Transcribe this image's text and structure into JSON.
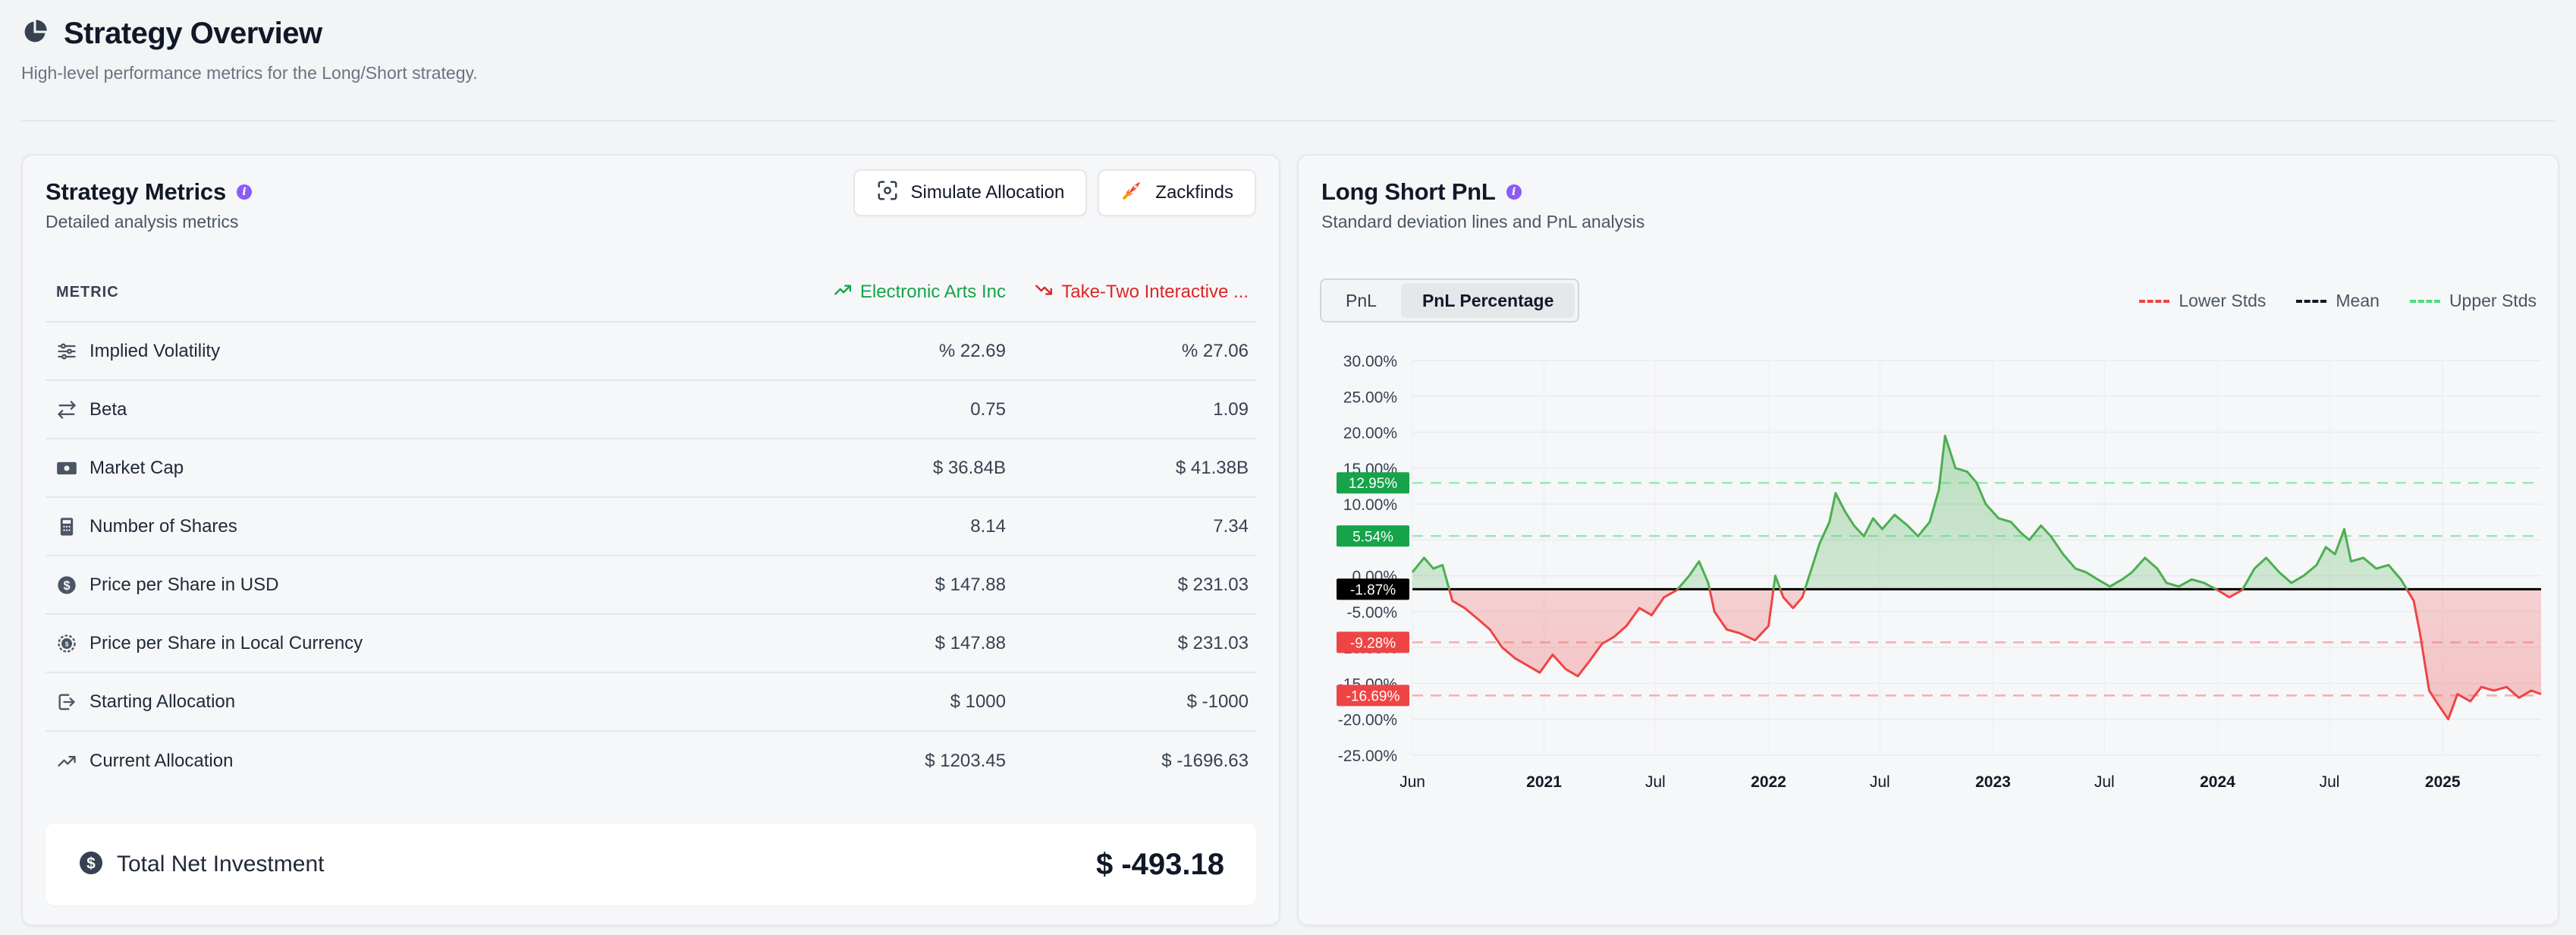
{
  "header": {
    "title": "Strategy Overview",
    "subtitle": "High-level performance metrics for the Long/Short strategy."
  },
  "metrics_card": {
    "title": "Strategy Metrics",
    "subtitle": "Detailed analysis metrics",
    "buttons": {
      "simulate": "Simulate Allocation",
      "zackfinds": "Zackfinds"
    },
    "table": {
      "metric_header": "METRIC",
      "col_a": "Electronic Arts Inc",
      "col_b": "Take-Two Interactive ...",
      "rows": [
        {
          "label": "Implied Volatility",
          "a": "% 22.69",
          "b": "% 27.06",
          "icon": "sliders-icon"
        },
        {
          "label": "Beta",
          "a": "0.75",
          "b": "1.09",
          "icon": "arrows-exchange-icon"
        },
        {
          "label": "Market Cap",
          "a": "$ 36.84B",
          "b": "$ 41.38B",
          "icon": "banknote-icon"
        },
        {
          "label": "Number of Shares",
          "a": "8.14",
          "b": "7.34",
          "icon": "calculator-icon"
        },
        {
          "label": "Price per Share in USD",
          "a": "$ 147.88",
          "b": "$ 231.03",
          "icon": "dollar-circle-icon"
        },
        {
          "label": "Price per Share in Local Currency",
          "a": "$ 147.88",
          "b": "$ 231.03",
          "icon": "globe-currency-icon"
        },
        {
          "label": "Starting Allocation",
          "a": "$ 1000",
          "b": "$ -1000",
          "icon": "logout-icon"
        },
        {
          "label": "Current Allocation",
          "a": "$ 1203.45",
          "b": "$ -1696.63",
          "icon": "trending-up-icon"
        }
      ]
    },
    "total": {
      "label": "Total Net Investment",
      "value": "$ -493.18"
    }
  },
  "pnl_card": {
    "title": "Long Short PnL",
    "subtitle": "Standard deviation lines and PnL analysis",
    "toggle": {
      "options": [
        "PnL",
        "PnL Percentage"
      ],
      "selected": "PnL Percentage"
    },
    "legend": {
      "lower": "Lower Stds",
      "mean": "Mean",
      "upper": "Upper Stds"
    }
  },
  "colors": {
    "positive": "#16a34a",
    "negative": "#dc2626",
    "line_up": "#4caf50",
    "line_down": "#ef4444",
    "upper_std": "#4ade80",
    "lower_std": "#f87171",
    "mean": "#000000",
    "accent": "#8b5cf6"
  },
  "chart_data": {
    "type": "line",
    "y_ticks": [
      "30.00%",
      "25.00%",
      "20.00%",
      "15.00%",
      "10.00%",
      "5.00%",
      "0.00%",
      "-5.00%",
      "-10.00%",
      "-15.00%",
      "-20.00%",
      "-25.00%"
    ],
    "ylim": [
      -25,
      30
    ],
    "x_ticks": [
      {
        "label": "Jun",
        "date": "2020-06-01",
        "bold": false
      },
      {
        "label": "2021",
        "date": "2021-01-01",
        "bold": true
      },
      {
        "label": "Jul",
        "date": "2021-07-01",
        "bold": false
      },
      {
        "label": "2022",
        "date": "2022-01-01",
        "bold": true
      },
      {
        "label": "Jul",
        "date": "2022-07-01",
        "bold": false
      },
      {
        "label": "2023",
        "date": "2023-01-01",
        "bold": true
      },
      {
        "label": "Jul",
        "date": "2023-07-01",
        "bold": false
      },
      {
        "label": "2024",
        "date": "2024-01-01",
        "bold": true
      },
      {
        "label": "Jul",
        "date": "2024-07-01",
        "bold": false
      },
      {
        "label": "2025",
        "date": "2025-01-01",
        "bold": true
      }
    ],
    "xlim": [
      "2020-06-01",
      "2025-06-10"
    ],
    "mean": -1.87,
    "mean_label": "-1.87%",
    "upper_stds": [
      {
        "value": 5.54,
        "label": "5.54%"
      },
      {
        "value": 12.95,
        "label": "12.95%"
      }
    ],
    "lower_stds": [
      {
        "value": -9.28,
        "label": "-9.28%"
      },
      {
        "value": -16.69,
        "label": "-16.69%"
      }
    ],
    "series": [
      {
        "points": [
          [
            "2020-06-01",
            0.5
          ],
          [
            "2020-06-20",
            2.5
          ],
          [
            "2020-07-05",
            1.0
          ],
          [
            "2020-07-20",
            1.5
          ],
          [
            "2020-08-05",
            -3.5
          ],
          [
            "2020-08-25",
            -4.5
          ],
          [
            "2020-09-15",
            -6.0
          ],
          [
            "2020-10-05",
            -7.5
          ],
          [
            "2020-10-25",
            -10.0
          ],
          [
            "2020-11-15",
            -11.5
          ],
          [
            "2020-12-05",
            -12.5
          ],
          [
            "2020-12-25",
            -13.5
          ],
          [
            "2021-01-15",
            -11.0
          ],
          [
            "2021-02-05",
            -13.0
          ],
          [
            "2021-02-25",
            -14.0
          ],
          [
            "2021-03-15",
            -12.0
          ],
          [
            "2021-04-05",
            -9.5
          ],
          [
            "2021-04-25",
            -8.5
          ],
          [
            "2021-05-15",
            -7.0
          ],
          [
            "2021-06-05",
            -4.5
          ],
          [
            "2021-06-25",
            -5.5
          ],
          [
            "2021-07-15",
            -3.0
          ],
          [
            "2021-08-05",
            -2.0
          ],
          [
            "2021-08-25",
            0.0
          ],
          [
            "2021-09-10",
            2.0
          ],
          [
            "2021-09-25",
            -1.0
          ],
          [
            "2021-10-05",
            -5.0
          ],
          [
            "2021-10-25",
            -7.5
          ],
          [
            "2021-11-15",
            -8.0
          ],
          [
            "2021-12-10",
            -9.0
          ],
          [
            "2022-01-01",
            -7.0
          ],
          [
            "2022-01-12",
            0.0
          ],
          [
            "2022-01-25",
            -3.0
          ],
          [
            "2022-02-10",
            -4.5
          ],
          [
            "2022-02-25",
            -3.0
          ],
          [
            "2022-03-10",
            0.5
          ],
          [
            "2022-03-25",
            4.5
          ],
          [
            "2022-04-10",
            7.5
          ],
          [
            "2022-04-20",
            11.5
          ],
          [
            "2022-05-05",
            9.0
          ],
          [
            "2022-05-20",
            7.0
          ],
          [
            "2022-06-05",
            5.5
          ],
          [
            "2022-06-20",
            8.0
          ],
          [
            "2022-07-05",
            6.5
          ],
          [
            "2022-07-25",
            8.5
          ],
          [
            "2022-08-15",
            7.0
          ],
          [
            "2022-09-01",
            5.5
          ],
          [
            "2022-09-20",
            7.5
          ],
          [
            "2022-10-05",
            12.0
          ],
          [
            "2022-10-15",
            19.5
          ],
          [
            "2022-11-01",
            15.0
          ],
          [
            "2022-11-20",
            14.5
          ],
          [
            "2022-12-05",
            13.0
          ],
          [
            "2022-12-20",
            10.0
          ],
          [
            "2023-01-10",
            8.0
          ],
          [
            "2023-01-30",
            7.5
          ],
          [
            "2023-02-15",
            6.0
          ],
          [
            "2023-03-01",
            5.0
          ],
          [
            "2023-03-20",
            7.0
          ],
          [
            "2023-04-05",
            5.5
          ],
          [
            "2023-04-25",
            3.0
          ],
          [
            "2023-05-15",
            1.0
          ],
          [
            "2023-06-01",
            0.5
          ],
          [
            "2023-06-20",
            -0.5
          ],
          [
            "2023-07-10",
            -1.5
          ],
          [
            "2023-07-30",
            -0.5
          ],
          [
            "2023-08-15",
            0.5
          ],
          [
            "2023-09-05",
            2.5
          ],
          [
            "2023-09-25",
            1.0
          ],
          [
            "2023-10-10",
            -1.0
          ],
          [
            "2023-10-30",
            -1.5
          ],
          [
            "2023-11-20",
            -0.5
          ],
          [
            "2023-12-10",
            -1.0
          ],
          [
            "2024-01-01",
            -2.0
          ],
          [
            "2024-01-20",
            -3.0
          ],
          [
            "2024-02-10",
            -2.0
          ],
          [
            "2024-03-01",
            1.0
          ],
          [
            "2024-03-20",
            2.5
          ],
          [
            "2024-04-10",
            0.5
          ],
          [
            "2024-04-30",
            -1.0
          ],
          [
            "2024-05-20",
            0.0
          ],
          [
            "2024-06-10",
            1.5
          ],
          [
            "2024-06-25",
            4.0
          ],
          [
            "2024-07-10",
            3.0
          ],
          [
            "2024-07-25",
            6.5
          ],
          [
            "2024-08-05",
            2.0
          ],
          [
            "2024-08-25",
            2.5
          ],
          [
            "2024-09-15",
            1.0
          ],
          [
            "2024-10-05",
            1.5
          ],
          [
            "2024-10-25",
            -0.5
          ],
          [
            "2024-11-15",
            -3.5
          ],
          [
            "2024-11-25",
            -8.0
          ],
          [
            "2024-12-10",
            -16.0
          ],
          [
            "2024-12-25",
            -18.0
          ],
          [
            "2025-01-10",
            -20.0
          ],
          [
            "2025-01-25",
            -16.5
          ],
          [
            "2025-02-15",
            -17.5
          ],
          [
            "2025-03-05",
            -15.5
          ],
          [
            "2025-03-25",
            -16.0
          ],
          [
            "2025-04-15",
            -15.5
          ],
          [
            "2025-05-05",
            -17.0
          ],
          [
            "2025-05-25",
            -16.0
          ],
          [
            "2025-06-10",
            -16.5
          ]
        ]
      }
    ]
  }
}
